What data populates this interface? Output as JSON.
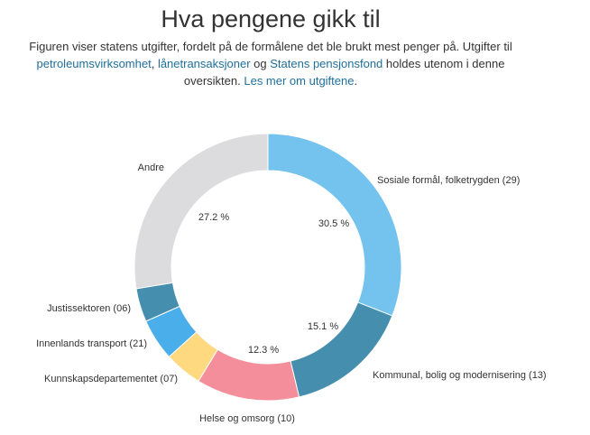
{
  "title": "Hva pengene gikk til",
  "intro": {
    "text1": "Figuren viser statens utgifter, fordelt på de formålene det ble brukt mest penger på. Utgifter til ",
    "link1": "petroleumsvirksomhet",
    "sep1": ", ",
    "link2": "lånetransaksjoner",
    "sep2": " og ",
    "link3": "Statens pensjonsfond",
    "text2": " holdes utenom i denne oversikten. ",
    "link4": "Les mer om utgiftene",
    "text3": "."
  },
  "chart_data": {
    "type": "pie",
    "title": "Hva pengene gikk til",
    "categories": [
      "Sosiale formål, folketrygden (29)",
      "Kommunal, bolig og modernisering (13)",
      "Helse og omsorg (10)",
      "Kunnskapsdepartementet (07)",
      "Innenlands transport (21)",
      "Justissektoren (06)",
      "Andre"
    ],
    "values": [
      30.5,
      15.1,
      12.3,
      4.5,
      5.0,
      4.0,
      27.2
    ],
    "value_labels": [
      "30.5 %",
      "15.1 %",
      "12.3 %",
      "",
      "",
      "",
      "27.2 %"
    ],
    "colors": [
      "#73c3ee",
      "#468eae",
      "#f48e9a",
      "#fed980",
      "#4aaeea",
      "#468eae",
      "#dcdcde"
    ]
  }
}
